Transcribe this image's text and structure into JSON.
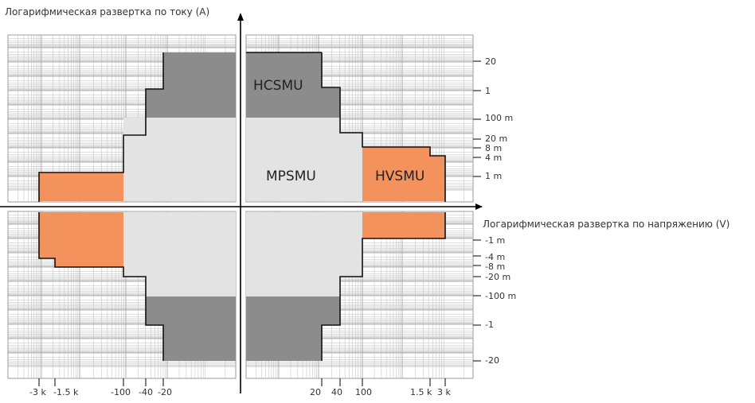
{
  "current_axis_title": "Логарифмическая развертка по току (A)",
  "voltage_axis_title": "Логарифмическая развертка по напряжению (V)",
  "regions": {
    "hcsmu": "HCSMU",
    "mpsmu": "MPSMU",
    "hvsmu": "HVSMU"
  },
  "y_ticks_positive": [
    "20",
    "1",
    "100 m",
    "20 m",
    "8 m",
    "4 m",
    "1 m"
  ],
  "y_ticks_negative": [
    "-1 m",
    "-4 m",
    "-8 m",
    "-20 m",
    "-100 m",
    "-1",
    "-20"
  ],
  "x_ticks_negative": [
    "-3 k",
    "-1.5 k",
    "-100",
    "-40",
    "-20"
  ],
  "x_ticks_positive": [
    "20",
    "40",
    "100",
    "1.5 k",
    "3 k"
  ],
  "colors": {
    "hcsmu": "#8c8c8c",
    "mpsmu": "#e3e3e3",
    "hvsmu": "#f4925e",
    "grid": "#bdbdbd",
    "axis": "#000000"
  }
}
